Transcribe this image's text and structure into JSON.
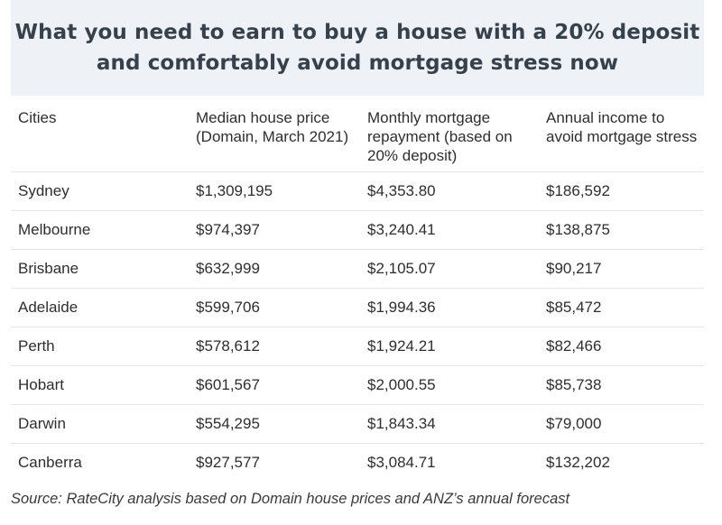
{
  "title": {
    "line1": "What you need to earn to buy a house with a 20% deposit",
    "line2": "and comfortably avoid mortgage stress now"
  },
  "table": {
    "headers": [
      "Cities",
      "Median house price (Domain, March 2021)",
      "Monthly mortgage repayment (based on 20% deposit)",
      "Annual income to avoid mortgage stress"
    ],
    "rows": [
      [
        "Sydney",
        "$1,309,195",
        "$4,353.80",
        "$186,592"
      ],
      [
        "Melbourne",
        "$974,397",
        "$3,240.41",
        "$138,875"
      ],
      [
        "Brisbane",
        "$632,999",
        "$2,105.07",
        "$90,217"
      ],
      [
        "Adelaide",
        "$599,706",
        "$1,994.36",
        "$85,472"
      ],
      [
        "Perth",
        "$578,612",
        "$1,924.21",
        "$82,466"
      ],
      [
        "Hobart",
        "$601,567",
        "$2,000.55",
        "$85,738"
      ],
      [
        "Darwin",
        "$554,295",
        "$1,843.34",
        "$79,000"
      ],
      [
        "Canberra",
        "$927,577",
        "$3,084.71",
        "$132,202"
      ]
    ]
  },
  "source": "Source: RateCity analysis based on Domain house prices and ANZ’s annual forecast",
  "chart_data": {
    "type": "table",
    "title": "What you need to earn to buy a house with a 20% deposit and comfortably avoid mortgage stress now",
    "columns": [
      "Cities",
      "Median house price (Domain, March 2021)",
      "Monthly mortgage repayment (based on 20% deposit)",
      "Annual income to avoid mortgage stress"
    ],
    "categories": [
      "Sydney",
      "Melbourne",
      "Brisbane",
      "Adelaide",
      "Perth",
      "Hobart",
      "Darwin",
      "Canberra"
    ],
    "series": [
      {
        "name": "Median house price (Domain, March 2021)",
        "values": [
          1309195,
          974397,
          632999,
          599706,
          578612,
          601567,
          554295,
          927577
        ]
      },
      {
        "name": "Monthly mortgage repayment (based on 20% deposit)",
        "values": [
          4353.8,
          3240.41,
          2105.07,
          1994.36,
          1924.21,
          2000.55,
          1843.34,
          3084.71
        ]
      },
      {
        "name": "Annual income to avoid mortgage stress",
        "values": [
          186592,
          138875,
          90217,
          85472,
          82466,
          85738,
          79000,
          132202
        ]
      }
    ]
  }
}
